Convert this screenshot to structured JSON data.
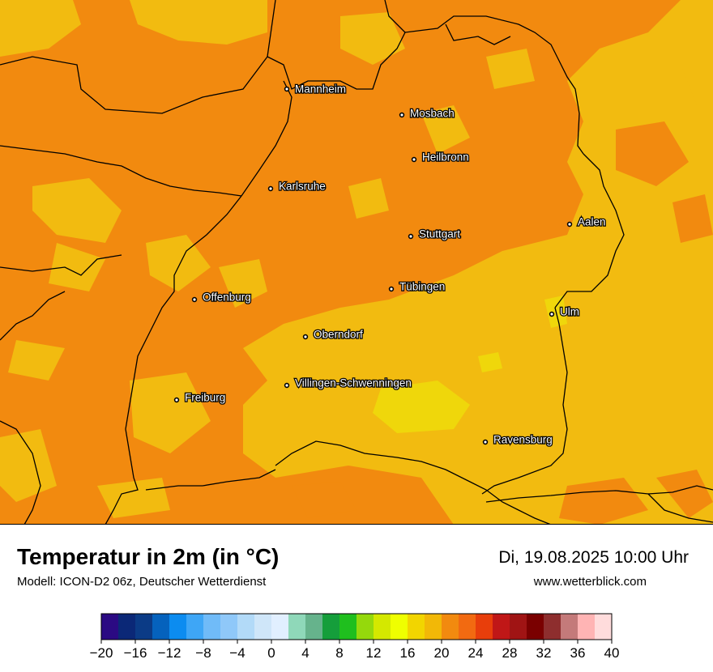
{
  "map": {
    "cities": [
      {
        "name": "Mannheim"
      },
      {
        "name": "Mosbach"
      },
      {
        "name": "Heilbronn"
      },
      {
        "name": "Karlsruhe"
      },
      {
        "name": "Aalen"
      },
      {
        "name": "Stuttgart"
      },
      {
        "name": "Tübingen"
      },
      {
        "name": "Offenburg"
      },
      {
        "name": "Ulm"
      },
      {
        "name": "Oberndorf"
      },
      {
        "name": "Villingen-Schwenningen"
      },
      {
        "name": "Freiburg"
      },
      {
        "name": "Ravensburg"
      }
    ],
    "colors": {
      "warm": "#f28a0f",
      "mild": "#f2bb10",
      "bright": "#efd70b",
      "border": "#000000"
    }
  },
  "header": {
    "title": "Temperatur in 2m (in °C)",
    "model": "Modell: ICON-D2 06z, Deutscher Wetterdienst",
    "datetime": "Di, 19.08.2025 10:00 Uhr",
    "website": "www.wetterblick.com"
  },
  "legend": {
    "colors": [
      "#2b0a83",
      "#0b2877",
      "#0b3b86",
      "#0562bd",
      "#0c8cf0",
      "#3ea6f6",
      "#70bbf8",
      "#8fc8f9",
      "#b2daf8",
      "#cfe6f9",
      "#e1efff",
      "#8fd8b9",
      "#66b38c",
      "#159e3b",
      "#1fbf1e",
      "#95d90c",
      "#d4e800",
      "#efff00",
      "#f2d500",
      "#f2b807",
      "#f28a0f",
      "#f26a11",
      "#e83e0b",
      "#c01717",
      "#a01414",
      "#7a0000",
      "#8e2e2e",
      "#c47a7a",
      "#ffb4b4",
      "#ffdcdc"
    ],
    "ticks": [
      "−20",
      "−16",
      "−12",
      "−8",
      "−4",
      "0",
      "4",
      "8",
      "12",
      "16",
      "20",
      "24",
      "28",
      "32",
      "36",
      "40"
    ]
  }
}
